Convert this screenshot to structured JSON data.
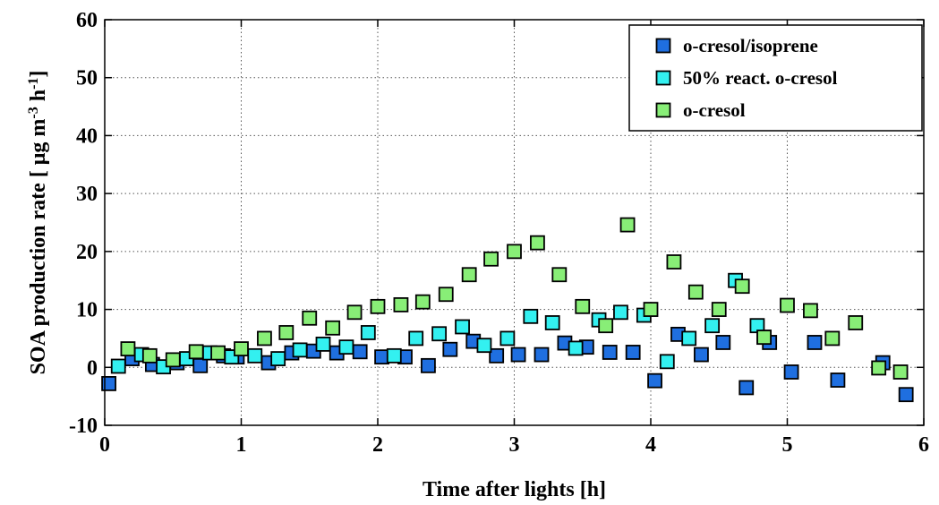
{
  "chart_data": {
    "type": "scatter",
    "xlabel": "Time after lights [h]",
    "ylabel": "SOA production rate [ μg m-3 h-1]",
    "ylabel_parts": {
      "base": "SOA production rate [ μg m",
      "sup1": "-3",
      "mid": " h",
      "sup2": "-1",
      "end": "]"
    },
    "xlim": [
      0,
      6
    ],
    "ylim": [
      -10,
      60
    ],
    "xticks": [
      0,
      1,
      2,
      3,
      4,
      5,
      6
    ],
    "yticks": [
      -10,
      0,
      10,
      20,
      30,
      40,
      50,
      60
    ],
    "grid": true,
    "legend_position": "top-right",
    "series": [
      {
        "name": "o-cresol/isoprene",
        "color": "#1f6fe0",
        "points": [
          [
            0.03,
            -2.8
          ],
          [
            0.2,
            1.5
          ],
          [
            0.35,
            0.5
          ],
          [
            0.53,
            0.8
          ],
          [
            0.7,
            0.3
          ],
          [
            0.87,
            2.0
          ],
          [
            0.97,
            1.8
          ],
          [
            1.2,
            0.8
          ],
          [
            1.37,
            2.5
          ],
          [
            1.53,
            2.8
          ],
          [
            1.7,
            2.5
          ],
          [
            1.87,
            2.7
          ],
          [
            2.03,
            1.8
          ],
          [
            2.2,
            1.8
          ],
          [
            2.37,
            0.3
          ],
          [
            2.53,
            3.1
          ],
          [
            2.7,
            4.5
          ],
          [
            2.87,
            2.0
          ],
          [
            3.03,
            2.2
          ],
          [
            3.2,
            2.2
          ],
          [
            3.37,
            4.2
          ],
          [
            3.53,
            3.5
          ],
          [
            3.7,
            2.6
          ],
          [
            3.87,
            2.6
          ],
          [
            4.03,
            -2.3
          ],
          [
            4.2,
            5.7
          ],
          [
            4.37,
            2.2
          ],
          [
            4.53,
            4.3
          ],
          [
            4.7,
            -3.5
          ],
          [
            4.87,
            4.3
          ],
          [
            5.03,
            -0.8
          ],
          [
            5.2,
            4.3
          ],
          [
            5.37,
            -2.2
          ],
          [
            5.7,
            0.8
          ],
          [
            5.87,
            -4.7
          ]
        ]
      },
      {
        "name": "50% react. o-cresol",
        "color": "#33f0f0",
        "points": [
          [
            0.1,
            0.2
          ],
          [
            0.27,
            2.2
          ],
          [
            0.43,
            0.1
          ],
          [
            0.6,
            1.5
          ],
          [
            0.77,
            2.5
          ],
          [
            0.93,
            1.8
          ],
          [
            1.1,
            2.0
          ],
          [
            1.27,
            1.5
          ],
          [
            1.43,
            3.0
          ],
          [
            1.6,
            4.0
          ],
          [
            1.77,
            3.5
          ],
          [
            1.93,
            6.0
          ],
          [
            2.12,
            2.0
          ],
          [
            2.28,
            5.0
          ],
          [
            2.45,
            5.8
          ],
          [
            2.62,
            7.0
          ],
          [
            2.78,
            3.8
          ],
          [
            2.95,
            5.0
          ],
          [
            3.12,
            8.8
          ],
          [
            3.28,
            7.7
          ],
          [
            3.45,
            3.3
          ],
          [
            3.62,
            8.2
          ],
          [
            3.78,
            9.5
          ],
          [
            3.95,
            9.0
          ],
          [
            4.12,
            1.0
          ],
          [
            4.28,
            5.0
          ],
          [
            4.45,
            7.2
          ],
          [
            4.62,
            15.0
          ],
          [
            4.78,
            7.2
          ],
          [
            4.83,
            5.2
          ]
        ]
      },
      {
        "name": "o-cresol",
        "color": "#88ee77",
        "points": [
          [
            0.17,
            3.2
          ],
          [
            0.33,
            2.0
          ],
          [
            0.5,
            1.3
          ],
          [
            0.67,
            2.7
          ],
          [
            0.83,
            2.5
          ],
          [
            1.0,
            3.2
          ],
          [
            1.17,
            5.0
          ],
          [
            1.33,
            6.0
          ],
          [
            1.5,
            8.5
          ],
          [
            1.67,
            6.8
          ],
          [
            1.83,
            9.5
          ],
          [
            2.0,
            10.5
          ],
          [
            2.17,
            10.8
          ],
          [
            2.33,
            11.3
          ],
          [
            2.5,
            12.6
          ],
          [
            2.67,
            16.0
          ],
          [
            2.83,
            18.7
          ],
          [
            3.0,
            20.0
          ],
          [
            3.17,
            21.5
          ],
          [
            3.33,
            16.0
          ],
          [
            3.5,
            10.5
          ],
          [
            3.67,
            7.2
          ],
          [
            3.83,
            24.6
          ],
          [
            4.0,
            10.0
          ],
          [
            4.17,
            18.2
          ],
          [
            4.33,
            13.0
          ],
          [
            4.5,
            10.0
          ],
          [
            4.67,
            14.0
          ],
          [
            4.83,
            5.2
          ],
          [
            5.0,
            10.7
          ],
          [
            5.17,
            9.8
          ],
          [
            5.33,
            5.0
          ],
          [
            5.5,
            7.7
          ],
          [
            5.67,
            -0.1
          ],
          [
            5.83,
            -0.8
          ]
        ]
      }
    ]
  }
}
